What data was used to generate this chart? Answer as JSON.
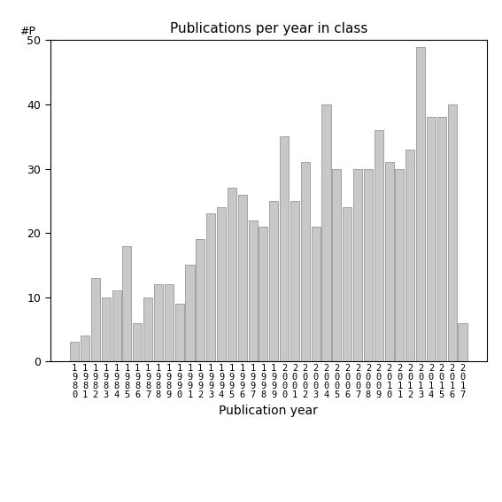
{
  "title": "Publications per year in class",
  "xlabel": "Publication year",
  "ylabel": "#P",
  "years": [
    "1980",
    "1981",
    "1982",
    "1983",
    "1984",
    "1985",
    "1986",
    "1987",
    "1988",
    "1989",
    "1990",
    "1991",
    "1992",
    "1993",
    "1994",
    "1995",
    "1996",
    "1997",
    "1998",
    "1999",
    "2000",
    "2001",
    "2002",
    "2003",
    "2004",
    "2005",
    "2006",
    "2007",
    "2008",
    "2009",
    "2010",
    "2011",
    "2012",
    "2013",
    "2014",
    "2015",
    "2016",
    "2017"
  ],
  "values": [
    3,
    4,
    13,
    10,
    11,
    18,
    6,
    10,
    12,
    12,
    9,
    15,
    19,
    23,
    24,
    27,
    26,
    22,
    21,
    25,
    35,
    25,
    31,
    21,
    40,
    30,
    24,
    30,
    30,
    36,
    31,
    30,
    33,
    49,
    38,
    38,
    40,
    6
  ],
  "bar_color": "#c8c8c8",
  "bar_edge_color": "#888888",
  "ylim": [
    0,
    50
  ],
  "yticks": [
    0,
    10,
    20,
    30,
    40,
    50
  ],
  "bg_color": "#ffffff",
  "title_fontsize": 11,
  "xlabel_fontsize": 10,
  "tick_fontsize": 9,
  "xtick_fontsize": 7.5
}
